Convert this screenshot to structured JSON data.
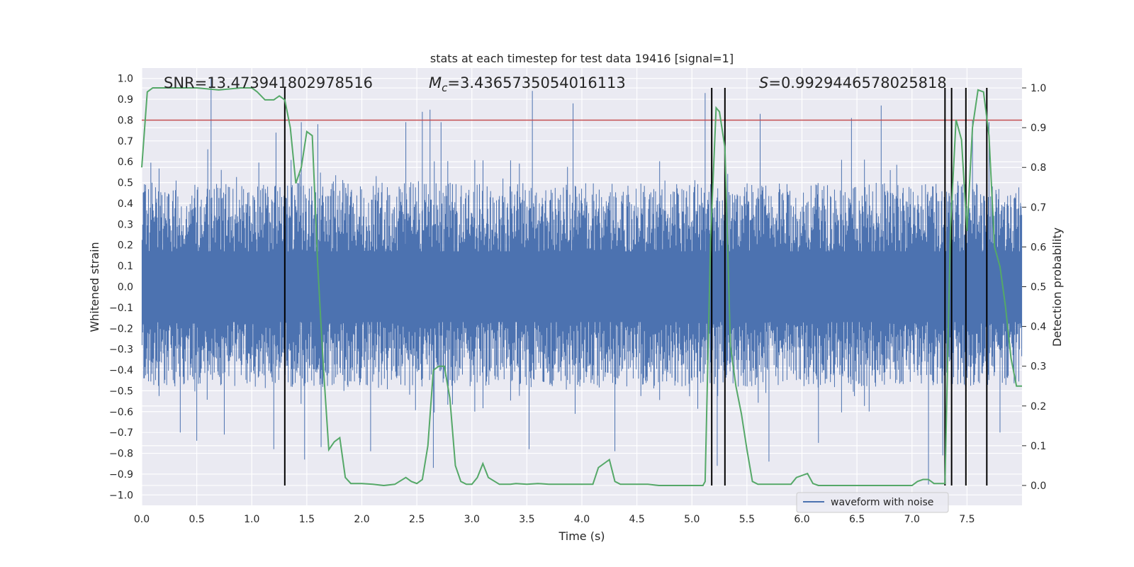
{
  "chart_data": {
    "type": "line",
    "title": "stats at each timestep for test data 19416 [signal=1]",
    "xlabel": "Time (s)",
    "ylabel_left": "Whitened strain",
    "ylabel_right": "Detection probability",
    "xlim": [
      0.0,
      8.0
    ],
    "ylim_left": [
      -1.05,
      1.05
    ],
    "ylim_right": [
      -0.05,
      1.05
    ],
    "grid": true,
    "xticks": [
      0.0,
      0.5,
      1.0,
      1.5,
      2.0,
      2.5,
      3.0,
      3.5,
      4.0,
      4.5,
      5.0,
      5.5,
      6.0,
      6.5,
      7.0,
      7.5
    ],
    "xtick_labels": [
      "0.0",
      "0.5",
      "1.0",
      "1.5",
      "2.0",
      "2.5",
      "3.0",
      "3.5",
      "4.0",
      "4.5",
      "5.0",
      "5.5",
      "6.0",
      "6.5",
      "7.0",
      "7.5"
    ],
    "yticks_left": [
      1.0,
      0.9,
      0.8,
      0.7,
      0.6,
      0.5,
      0.4,
      0.3,
      0.2,
      0.1,
      0.0,
      -0.1,
      -0.2,
      -0.3,
      -0.4,
      -0.5,
      -0.6,
      -0.7,
      -0.8,
      -0.9,
      -1.0
    ],
    "ytick_labels_left": [
      "1.0",
      "0.9",
      "0.8",
      "0.7",
      "0.6",
      "0.5",
      "0.4",
      "0.3",
      "0.2",
      "0.1",
      "0.0",
      "−0.1",
      "−0.2",
      "−0.3",
      "−0.4",
      "−0.5",
      "−0.6",
      "−0.7",
      "−0.8",
      "−0.9",
      "−1.0"
    ],
    "yticks_right": [
      1.0,
      0.9,
      0.8,
      0.7,
      0.6,
      0.5,
      0.4,
      0.3,
      0.2,
      0.1,
      0.0
    ],
    "ytick_labels_right": [
      "1.0",
      "0.9",
      "0.8",
      "0.7",
      "0.6",
      "0.5",
      "0.4",
      "0.3",
      "0.2",
      "0.1",
      "0.0"
    ],
    "annotations": {
      "snr": "SNR=13.473941802978516",
      "mc_value": "=3.4365735054016113",
      "s_value": "=0.9929446578025818"
    },
    "waveform": {
      "name": "waveform with noise",
      "color": "#4c72b0",
      "band_pos_typ": 0.5,
      "band_neg_typ": -0.45,
      "spikes_pos": [
        [
          0.63,
          1.0
        ],
        [
          0.6,
          0.66
        ],
        [
          1.22,
          0.74
        ],
        [
          1.45,
          0.79
        ],
        [
          1.6,
          0.78
        ],
        [
          2.4,
          0.79
        ],
        [
          2.55,
          0.84
        ],
        [
          2.62,
          0.85
        ],
        [
          2.72,
          0.79
        ],
        [
          3.55,
          0.94
        ],
        [
          3.92,
          0.88
        ],
        [
          5.12,
          0.93
        ],
        [
          5.62,
          0.83
        ],
        [
          6.45,
          0.81
        ],
        [
          6.72,
          0.87
        ],
        [
          7.55,
          0.8
        ],
        [
          7.7,
          0.79
        ]
      ],
      "spikes_neg": [
        [
          0.35,
          -0.7
        ],
        [
          0.5,
          -0.74
        ],
        [
          0.75,
          -0.71
        ],
        [
          1.2,
          -0.78
        ],
        [
          1.48,
          -0.83
        ],
        [
          1.63,
          -0.77
        ],
        [
          2.08,
          -0.79
        ],
        [
          2.65,
          -0.87
        ],
        [
          3.52,
          -0.78
        ],
        [
          4.3,
          -0.79
        ],
        [
          5.23,
          -0.86
        ],
        [
          5.7,
          -0.84
        ],
        [
          6.15,
          -0.75
        ],
        [
          7.15,
          -0.95
        ],
        [
          7.28,
          -0.81
        ],
        [
          7.8,
          -0.7
        ]
      ]
    },
    "threshold": {
      "value": 0.8,
      "color": "#c44e52"
    },
    "probability": {
      "color": "#55a868",
      "x": [
        0.0,
        0.05,
        0.1,
        0.2,
        0.3,
        0.5,
        0.7,
        0.9,
        1.0,
        1.05,
        1.12,
        1.2,
        1.25,
        1.3,
        1.35,
        1.4,
        1.45,
        1.5,
        1.55,
        1.6,
        1.65,
        1.7,
        1.75,
        1.8,
        1.85,
        1.9,
        1.95,
        2.0,
        2.1,
        2.2,
        2.3,
        2.4,
        2.45,
        2.5,
        2.55,
        2.6,
        2.65,
        2.7,
        2.75,
        2.8,
        2.85,
        2.9,
        2.95,
        3.0,
        3.05,
        3.1,
        3.15,
        3.25,
        3.3,
        3.35,
        3.4,
        3.5,
        3.6,
        3.7,
        3.8,
        3.9,
        4.0,
        4.1,
        4.15,
        4.25,
        4.3,
        4.35,
        4.4,
        4.5,
        4.6,
        4.7,
        4.8,
        4.9,
        5.0,
        5.1,
        5.12,
        5.17,
        5.22,
        5.25,
        5.3,
        5.35,
        5.4,
        5.45,
        5.5,
        5.55,
        5.6,
        5.65,
        5.7,
        5.8,
        5.9,
        5.95,
        6.05,
        6.1,
        6.15,
        6.3,
        6.5,
        6.7,
        6.9,
        7.0,
        7.05,
        7.1,
        7.15,
        7.2,
        7.25,
        7.3,
        7.35,
        7.4,
        7.45,
        7.5,
        7.55,
        7.6,
        7.65,
        7.7,
        7.75,
        7.8,
        7.85,
        7.9,
        7.95,
        8.0
      ],
      "y": [
        0.8,
        0.99,
        1.0,
        1.0,
        1.0,
        1.0,
        0.995,
        1.0,
        1.0,
        0.99,
        0.97,
        0.97,
        0.98,
        0.97,
        0.9,
        0.76,
        0.8,
        0.89,
        0.88,
        0.55,
        0.3,
        0.09,
        0.11,
        0.12,
        0.02,
        0.005,
        0.005,
        0.005,
        0.003,
        0.0,
        0.003,
        0.02,
        0.01,
        0.005,
        0.015,
        0.1,
        0.29,
        0.3,
        0.3,
        0.22,
        0.05,
        0.01,
        0.003,
        0.003,
        0.02,
        0.055,
        0.02,
        0.003,
        0.003,
        0.003,
        0.005,
        0.003,
        0.005,
        0.003,
        0.003,
        0.003,
        0.003,
        0.003,
        0.045,
        0.065,
        0.01,
        0.003,
        0.003,
        0.003,
        0.003,
        0.0,
        0.0,
        0.0,
        0.0,
        0.0,
        0.01,
        0.62,
        0.95,
        0.94,
        0.85,
        0.35,
        0.25,
        0.18,
        0.09,
        0.01,
        0.003,
        0.003,
        0.003,
        0.003,
        0.003,
        0.02,
        0.03,
        0.005,
        0.0,
        0.0,
        0.0,
        0.0,
        0.0,
        0.0,
        0.01,
        0.015,
        0.015,
        0.005,
        0.005,
        0.005,
        0.65,
        0.92,
        0.87,
        0.64,
        0.9,
        0.995,
        0.99,
        0.88,
        0.6,
        0.55,
        0.45,
        0.32,
        0.25,
        0.25
      ]
    },
    "detection_lines_x": [
      1.3,
      5.18,
      5.3,
      7.3,
      7.36,
      7.49,
      7.68
    ],
    "legend": {
      "label": "waveform with noise",
      "placement": "lower-right"
    }
  }
}
